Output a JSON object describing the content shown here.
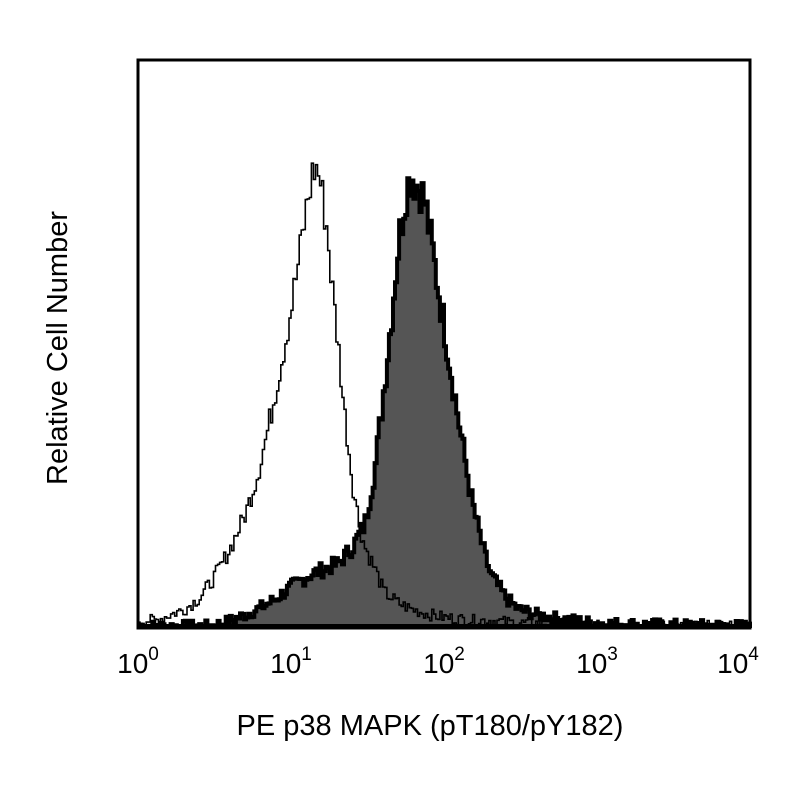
{
  "chart_data": {
    "type": "area",
    "title": "",
    "xlabel": "PE p38 MAPK (pT180/pY182)",
    "ylabel": "Relative Cell Number",
    "x_scale": "log",
    "xlim": [
      1,
      10000
    ],
    "ylim": [
      0,
      1.0
    ],
    "x_ticks": [
      {
        "base": "10",
        "exp": "0"
      },
      {
        "base": "10",
        "exp": "1"
      },
      {
        "base": "10",
        "exp": "2"
      },
      {
        "base": "10",
        "exp": "3"
      },
      {
        "base": "10",
        "exp": "4"
      }
    ],
    "grid": false,
    "legend": "none",
    "series": [
      {
        "style": "outline",
        "color": "#000000",
        "x": [
          1,
          1.3,
          1.6,
          2,
          2.5,
          3,
          3.5,
          4,
          5,
          6,
          7,
          8,
          9,
          10,
          11,
          12,
          13,
          14,
          15,
          16,
          17,
          18,
          20,
          22,
          25,
          28,
          30,
          35,
          40,
          50,
          60,
          80,
          100,
          150,
          200,
          300,
          500,
          1000,
          3000,
          10000
        ],
        "y": [
          0.01,
          0.01,
          0.02,
          0.03,
          0.05,
          0.08,
          0.11,
          0.14,
          0.2,
          0.27,
          0.35,
          0.43,
          0.5,
          0.57,
          0.64,
          0.71,
          0.77,
          0.81,
          0.8,
          0.75,
          0.7,
          0.62,
          0.5,
          0.38,
          0.25,
          0.17,
          0.14,
          0.1,
          0.06,
          0.04,
          0.03,
          0.02,
          0.015,
          0.01,
          0.01,
          0.005,
          0.005,
          0.0,
          0.0,
          0.0
        ]
      },
      {
        "style": "filled",
        "color": "#555555",
        "x": [
          1,
          2,
          3,
          4,
          5,
          6,
          7,
          8,
          10,
          13,
          16,
          20,
          25,
          30,
          35,
          40,
          45,
          50,
          55,
          60,
          65,
          70,
          75,
          80,
          90,
          100,
          120,
          150,
          180,
          200,
          250,
          300,
          400,
          500,
          700,
          1000,
          2000,
          5000,
          10000
        ],
        "y": [
          0.0,
          0.0,
          0.0,
          0.01,
          0.02,
          0.03,
          0.04,
          0.05,
          0.07,
          0.09,
          0.1,
          0.11,
          0.14,
          0.18,
          0.28,
          0.42,
          0.55,
          0.68,
          0.76,
          0.8,
          0.78,
          0.77,
          0.74,
          0.69,
          0.6,
          0.52,
          0.38,
          0.22,
          0.13,
          0.09,
          0.05,
          0.03,
          0.02,
          0.015,
          0.01,
          0.005,
          0.003,
          0.001,
          0.0
        ]
      }
    ]
  }
}
